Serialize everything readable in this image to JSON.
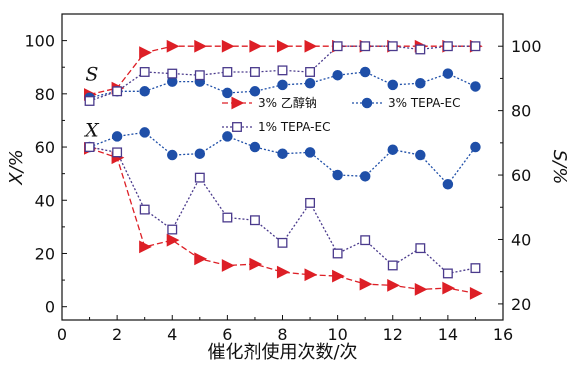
{
  "chart_data": {
    "type": "line",
    "xlabel": "催化剂使用次数/次",
    "ylabel_left": "X/%",
    "ylabel_right": "S/%",
    "xlim": [
      0,
      16
    ],
    "ylim_left": [
      -5,
      110
    ],
    "ylim_right": [
      15,
      110
    ],
    "x_ticks": [
      0,
      2,
      4,
      6,
      8,
      10,
      12,
      14,
      16
    ],
    "y_left_ticks": [
      0,
      20,
      40,
      60,
      80,
      100
    ],
    "y_right_ticks": [
      20,
      40,
      60,
      80,
      100
    ],
    "annotations": [
      {
        "text": "S",
        "x": 1.3,
        "y_left": 85
      },
      {
        "text": "X",
        "x": 1.3,
        "y_left": 64
      }
    ],
    "series": [
      {
        "name": "3% 乙醇钠",
        "metric": "S",
        "axis": "right",
        "color": "#dd1f26",
        "marker": "triangle-right",
        "filled": true,
        "x": [
          1,
          2,
          3,
          4,
          5,
          6,
          7,
          8,
          9,
          10,
          11,
          12,
          13,
          14,
          15
        ],
        "values": [
          85,
          87,
          98,
          100,
          100,
          100,
          100,
          100,
          100,
          100,
          100,
          100,
          100,
          100,
          100
        ]
      },
      {
        "name": "3% TEPA-EC",
        "metric": "S",
        "axis": "right",
        "color": "#1f4fa8",
        "marker": "circle",
        "filled": true,
        "x": [
          1,
          2,
          3,
          4,
          5,
          6,
          7,
          8,
          9,
          10,
          11,
          12,
          13,
          14,
          15
        ],
        "values": [
          84,
          86,
          86,
          89,
          89,
          85.5,
          86,
          88,
          88.5,
          91,
          92,
          88,
          88.5,
          91.5,
          87.5
        ]
      },
      {
        "name": "1% TEPA-EC",
        "metric": "S",
        "axis": "right",
        "color": "#4a3a8c",
        "marker": "square",
        "filled": false,
        "x": [
          1,
          2,
          3,
          4,
          5,
          6,
          7,
          8,
          9,
          10,
          11,
          12,
          13,
          14,
          15
        ],
        "values": [
          83,
          86,
          92,
          91.5,
          91,
          92,
          92,
          92.5,
          92,
          100,
          100,
          100,
          99,
          100,
          100
        ]
      },
      {
        "name": "3% 乙醇钠",
        "metric": "X",
        "axis": "left",
        "color": "#dd1f26",
        "marker": "triangle-right",
        "filled": true,
        "x": [
          1,
          2,
          3,
          4,
          5,
          6,
          7,
          8,
          9,
          10,
          11,
          12,
          13,
          14,
          15
        ],
        "values": [
          59.5,
          56,
          22.5,
          25,
          18,
          15.5,
          16,
          13,
          12,
          11.5,
          8.5,
          8,
          6.5,
          7,
          5
        ]
      },
      {
        "name": "3% TEPA-EC",
        "metric": "X",
        "axis": "left",
        "color": "#1f4fa8",
        "marker": "circle",
        "filled": true,
        "x": [
          1,
          2,
          3,
          4,
          5,
          6,
          7,
          8,
          9,
          10,
          11,
          12,
          13,
          14,
          15
        ],
        "values": [
          60,
          64,
          65.5,
          57,
          57.5,
          64,
          60,
          57.5,
          58,
          49.5,
          49,
          59,
          57,
          46,
          60
        ]
      },
      {
        "name": "1% TEPA-EC",
        "metric": "X",
        "axis": "left",
        "color": "#4a3a8c",
        "marker": "square",
        "filled": false,
        "x": [
          1,
          2,
          3,
          4,
          5,
          6,
          7,
          8,
          9,
          10,
          11,
          12,
          13,
          14,
          15
        ],
        "values": [
          60,
          58,
          36.5,
          29,
          48.5,
          33.5,
          32.5,
          24,
          39,
          20,
          25,
          15.5,
          22,
          12.5,
          14.5
        ]
      }
    ],
    "legend": {
      "placement": "center-right",
      "items": [
        {
          "label": "3% 乙醇钠",
          "marker": "triangle-right",
          "color": "#dd1f26",
          "filled": true
        },
        {
          "label": "3% TEPA-EC",
          "marker": "circle",
          "color": "#1f4fa8",
          "filled": true
        },
        {
          "label": "1% TEPA-EC",
          "marker": "square",
          "color": "#4a3a8c",
          "filled": false
        }
      ]
    }
  }
}
